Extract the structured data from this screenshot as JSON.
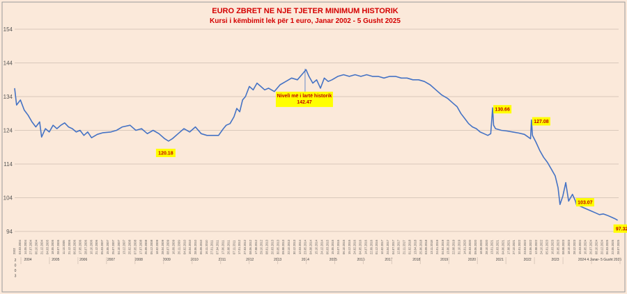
{
  "chart_data": {
    "type": "line",
    "title": "EURO ZBRET NE NJE TJETER MINIMUM HISTORIK",
    "subtitle": "Kursi i këmbimit lek për 1 euro, Janar 2002 - 5 Gusht 2025",
    "xlabel": "",
    "ylabel": "",
    "ylim": [
      94,
      154
    ],
    "yticks": [
      94,
      104,
      114,
      124,
      134,
      144,
      154
    ],
    "grid": true,
    "x_start": "2002",
    "x_extra_label": "2024 4 Janar- 5 Gusht 2025",
    "year_labels": [
      "2",
      "0",
      "0",
      "3",
      "2004",
      "2005",
      "2006",
      "2007",
      "2008",
      "2009",
      "2010",
      "2011",
      "2012",
      "2013",
      "2014",
      "2015",
      "2016",
      "2017",
      "2018",
      "2019",
      "2020",
      "2021",
      "2022",
      "2023"
    ],
    "date_ticks": [
      "2002",
      "03.03.2004",
      "14.05.2004",
      "27.07.2004",
      "06.10.2004",
      "21.12.2004",
      "04.03.2005",
      "18.05.2005",
      "28.07.2005",
      "11.10.2005",
      "21.12.2005",
      "06.03.2006",
      "17.05.2006",
      "28.07.2006",
      "10.10.2006",
      "21.12.2006",
      "05.03.2007",
      "15.05.2007",
      "25.07.2007",
      "04.10.2007",
      "13.12.2007",
      "25.02.2008",
      "07.05.2008",
      "17.07.2008",
      "26.09.2008",
      "05.12.2008",
      "18.02.2009",
      "28.04.2009",
      "08.07.2009",
      "16.09.2009",
      "26.11.2009",
      "04.02.2010",
      "16.04.2010",
      "28.06.2010",
      "06.09.2010",
      "16.11.2010",
      "27.01.2011",
      "07.04.2011",
      "17.06.2011",
      "26.08.2011",
      "07.11.2011",
      "17.01.2012",
      "27.03.2012",
      "08.06.2012",
      "17.08.2012",
      "29.10.2012",
      "08.01.2013",
      "20.03.2013",
      "30.05.2013",
      "09.08.2013",
      "22.10.2013",
      "30.12.2013",
      "12.03.2014",
      "23.05.2014",
      "04.08.2014",
      "15.10.2014",
      "24.12.2014",
      "06.03.2015",
      "15.05.2015",
      "24.07.2015",
      "06.10.2015",
      "15.12.2015",
      "24.02.2016",
      "04.05.2016",
      "14.07.2016",
      "22.09.2016",
      "01.12.2016",
      "10.02.2017",
      "24.04.2017",
      "04.07.2017",
      "12.09.2017",
      "21.11.2017",
      "01.02.2018",
      "13.04.2018",
      "25.06.2018",
      "03.09.2018",
      "13.11.2018",
      "24.01.2019",
      "04.04.2019",
      "13.06.2019",
      "22.08.2019",
      "31.10.2019",
      "14.01.2020",
      "26.03.2020",
      "09.06.2020",
      "18.08.2020",
      "28.10.2020",
      "13.01.2021",
      "26.03.2021",
      "04.06.2021",
      "17.08.2021",
      "27.10.2021",
      "10.01.2022",
      "23.03.2022",
      "03.06.2022",
      "12.08.2022",
      "24.10.2022",
      "05.01.2023",
      "16.03.2023",
      "26.05.2023",
      "08.08.2023",
      "18.10.2023",
      "28.12.2023",
      "15.03.2024",
      "16.05.2024",
      "26.07.2024",
      "08.10.2024",
      "20.12.2024",
      "06.03.2025",
      "22.05.2025",
      "28.07.2025"
    ],
    "series": [
      {
        "values": [
          [
            2002.0,
            136.5
          ],
          [
            2002.1,
            131.5
          ],
          [
            2002.3,
            133.0
          ],
          [
            2002.5,
            130.0
          ],
          [
            2002.7,
            128.5
          ],
          [
            2002.9,
            126.5
          ],
          [
            2003.1,
            125.0
          ],
          [
            2003.3,
            126.5
          ],
          [
            2003.4,
            122.0
          ],
          [
            2003.6,
            124.5
          ],
          [
            2003.8,
            123.5
          ],
          [
            2004.0,
            125.5
          ],
          [
            2004.2,
            124.5
          ],
          [
            2004.4,
            125.5
          ],
          [
            2004.6,
            126.2
          ],
          [
            2004.8,
            125.0
          ],
          [
            2005.0,
            124.5
          ],
          [
            2005.2,
            123.5
          ],
          [
            2005.4,
            124.0
          ],
          [
            2005.6,
            122.5
          ],
          [
            2005.8,
            123.5
          ],
          [
            2006.0,
            121.8
          ],
          [
            2006.3,
            122.8
          ],
          [
            2006.6,
            123.3
          ],
          [
            2007.0,
            123.5
          ],
          [
            2007.3,
            124.0
          ],
          [
            2007.6,
            125.0
          ],
          [
            2008.0,
            125.5
          ],
          [
            2008.3,
            124.0
          ],
          [
            2008.6,
            124.5
          ],
          [
            2008.9,
            123.0
          ],
          [
            2009.2,
            124.0
          ],
          [
            2009.5,
            123.0
          ],
          [
            2009.8,
            121.5
          ],
          [
            2010.0,
            120.8
          ],
          [
            2010.2,
            121.5
          ],
          [
            2010.5,
            123.0
          ],
          [
            2010.8,
            124.5
          ],
          [
            2011.1,
            123.5
          ],
          [
            2011.4,
            125.0
          ],
          [
            2011.7,
            123.0
          ],
          [
            2012.0,
            122.5
          ],
          [
            2012.3,
            122.5
          ],
          [
            2012.6,
            122.5
          ],
          [
            2012.85,
            124.5
          ],
          [
            2013.0,
            125.5
          ],
          [
            2013.2,
            126.0
          ],
          [
            2013.4,
            128.0
          ],
          [
            2013.55,
            130.5
          ],
          [
            2013.7,
            129.5
          ],
          [
            2013.85,
            133.0
          ],
          [
            2014.0,
            134.0
          ],
          [
            2014.2,
            137.0
          ],
          [
            2014.4,
            136.0
          ],
          [
            2014.6,
            138.0
          ],
          [
            2014.8,
            137.0
          ],
          [
            2015.0,
            136.0
          ],
          [
            2015.2,
            136.5
          ],
          [
            2015.5,
            135.5
          ],
          [
            2015.8,
            137.5
          ],
          [
            2016.1,
            138.5
          ],
          [
            2016.4,
            139.5
          ],
          [
            2016.7,
            139.0
          ],
          [
            2017.0,
            141.0
          ],
          [
            2017.15,
            142.0
          ],
          [
            2017.3,
            140.0
          ],
          [
            2017.5,
            138.0
          ],
          [
            2017.7,
            139.0
          ],
          [
            2017.9,
            136.5
          ],
          [
            2018.1,
            139.5
          ],
          [
            2018.3,
            138.5
          ],
          [
            2018.5,
            139.0
          ],
          [
            2018.8,
            140.0
          ],
          [
            2019.1,
            140.5
          ],
          [
            2019.4,
            140.0
          ],
          [
            2019.7,
            140.5
          ],
          [
            2020.0,
            140.0
          ],
          [
            2020.3,
            140.5
          ],
          [
            2020.6,
            140.0
          ],
          [
            2020.9,
            140.0
          ],
          [
            2021.2,
            139.5
          ],
          [
            2021.5,
            140.0
          ],
          [
            2021.8,
            140.0
          ],
          [
            2022.1,
            139.5
          ],
          [
            2022.4,
            139.5
          ],
          [
            2022.7,
            139.0
          ],
          [
            2023.0,
            139.0
          ],
          [
            2023.3,
            138.5
          ],
          [
            2023.6,
            137.5
          ],
          [
            2023.9,
            136.0
          ],
          [
            2024.2,
            134.5
          ],
          [
            2024.5,
            133.5
          ],
          [
            2024.8,
            132.0
          ],
          [
            2025.0,
            131.0
          ],
          [
            2025.2,
            129.0
          ],
          [
            2025.4,
            127.5
          ],
          [
            2025.6,
            126.0
          ],
          [
            2025.8,
            125.0
          ],
          [
            2026.0,
            124.5
          ],
          [
            2026.2,
            123.5
          ],
          [
            2026.4,
            123.0
          ],
          [
            2026.6,
            122.5
          ],
          [
            2026.75,
            123.0
          ],
          [
            2026.85,
            130.66
          ],
          [
            2026.9,
            125.5
          ],
          [
            2027.0,
            124.5
          ],
          [
            2027.3,
            124.0
          ],
          [
            2027.6,
            123.8
          ],
          [
            2027.9,
            123.5
          ],
          [
            2028.2,
            123.2
          ],
          [
            2028.5,
            122.8
          ],
          [
            2028.7,
            122.0
          ],
          [
            2028.82,
            121.5
          ],
          [
            2028.87,
            127.08
          ],
          [
            2028.92,
            122.5
          ],
          [
            2029.1,
            120.5
          ],
          [
            2029.3,
            118.0
          ],
          [
            2029.5,
            116.0
          ],
          [
            2029.7,
            114.5
          ],
          [
            2029.9,
            112.5
          ],
          [
            2030.1,
            110.5
          ],
          [
            2030.25,
            107.0
          ],
          [
            2030.35,
            102.0
          ],
          [
            2030.5,
            104.5
          ],
          [
            2030.65,
            108.5
          ],
          [
            2030.8,
            103.0
          ],
          [
            2031.0,
            105.0
          ],
          [
            2031.15,
            103.07
          ],
          [
            2031.2,
            102.0
          ],
          [
            2031.4,
            101.5
          ],
          [
            2031.6,
            101.0
          ],
          [
            2031.8,
            100.5
          ],
          [
            2032.0,
            100.0
          ],
          [
            2032.2,
            99.5
          ],
          [
            2032.4,
            99.0
          ],
          [
            2032.6,
            99.2
          ],
          [
            2032.8,
            98.8
          ],
          [
            2033.0,
            98.3
          ],
          [
            2033.2,
            97.8
          ],
          [
            2033.35,
            97.32
          ]
        ]
      }
    ],
    "annotations": [
      {
        "label": "120.18",
        "x": 2010.0,
        "y": 120.18
      },
      {
        "label": "Nivelì më i lartë historik",
        "label2": "142.47",
        "x": 2017.1,
        "y": 142.47
      },
      {
        "label": "130.66",
        "x": 2026.85,
        "y": 130.66
      },
      {
        "label": "127.08",
        "x": 2028.87,
        "y": 127.08
      },
      {
        "label": "103.07",
        "x": 2031.15,
        "y": 103.07
      },
      {
        "label": "97.32",
        "x": 2033.35,
        "y": 97.32
      }
    ]
  }
}
